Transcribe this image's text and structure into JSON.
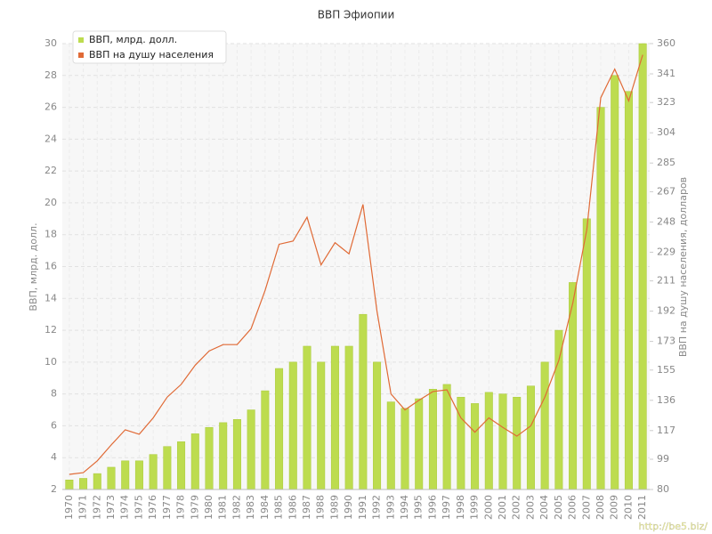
{
  "chart_data": {
    "type": "bar-line",
    "title": "ВВП Эфиопии",
    "ylabel": "ВВП, млрд. долл.",
    "y2label": "ВВП на душу населения, долларов",
    "watermark": "http://be5.biz/",
    "categories": [
      "1970",
      "1971",
      "1972",
      "1973",
      "1974",
      "1975",
      "1976",
      "1977",
      "1978",
      "1979",
      "1980",
      "1981",
      "1982",
      "1983",
      "1984",
      "1985",
      "1986",
      "1987",
      "1988",
      "1989",
      "1990",
      "1991",
      "1992",
      "1993",
      "1994",
      "1995",
      "1996",
      "1997",
      "1998",
      "1999",
      "2000",
      "2001",
      "2002",
      "2003",
      "2004",
      "2005",
      "2006",
      "2007",
      "2008",
      "2009",
      "2010",
      "2011"
    ],
    "series": [
      {
        "name": "ВВП, млрд. долл.",
        "color": "#bddc4f",
        "type": "bar",
        "values": [
          2.6,
          2.7,
          3.0,
          3.4,
          3.8,
          3.8,
          4.2,
          4.7,
          5.0,
          5.5,
          5.9,
          6.2,
          6.4,
          7.0,
          8.2,
          9.6,
          10.0,
          11.0,
          10.0,
          11.0,
          11.0,
          13.0,
          10.0,
          7.5,
          7.1,
          7.7,
          8.3,
          8.6,
          7.8,
          7.4,
          8.1,
          8.0,
          7.8,
          8.5,
          10.0,
          12.0,
          15.0,
          19.0,
          26.0,
          28.0,
          27.0,
          30.0
        ]
      },
      {
        "name": "ВВП на душу населения",
        "color": "#e06a36",
        "type": "line",
        "axis": "y2",
        "values": [
          89.5,
          90.6,
          98,
          108,
          117.5,
          114.7,
          125,
          138,
          146,
          158,
          167,
          171,
          171,
          181,
          205,
          234,
          236,
          251,
          221,
          235,
          228,
          259,
          192,
          140,
          130,
          136,
          141.5,
          142.6,
          125,
          116,
          125,
          119,
          113.5,
          120,
          138,
          161,
          197,
          243,
          326,
          344,
          324,
          353
        ]
      }
    ],
    "ylim": [
      2,
      30
    ],
    "yticks": [
      2,
      4,
      6,
      8,
      10,
      12,
      14,
      16,
      18,
      20,
      22,
      24,
      26,
      28,
      30
    ],
    "y2lim": [
      80,
      360
    ],
    "y2ticks": [
      80,
      99,
      117,
      136,
      155,
      173,
      192,
      211,
      229,
      248,
      267,
      285,
      304,
      323,
      341,
      360
    ],
    "grid": true,
    "legend": "top-left"
  }
}
